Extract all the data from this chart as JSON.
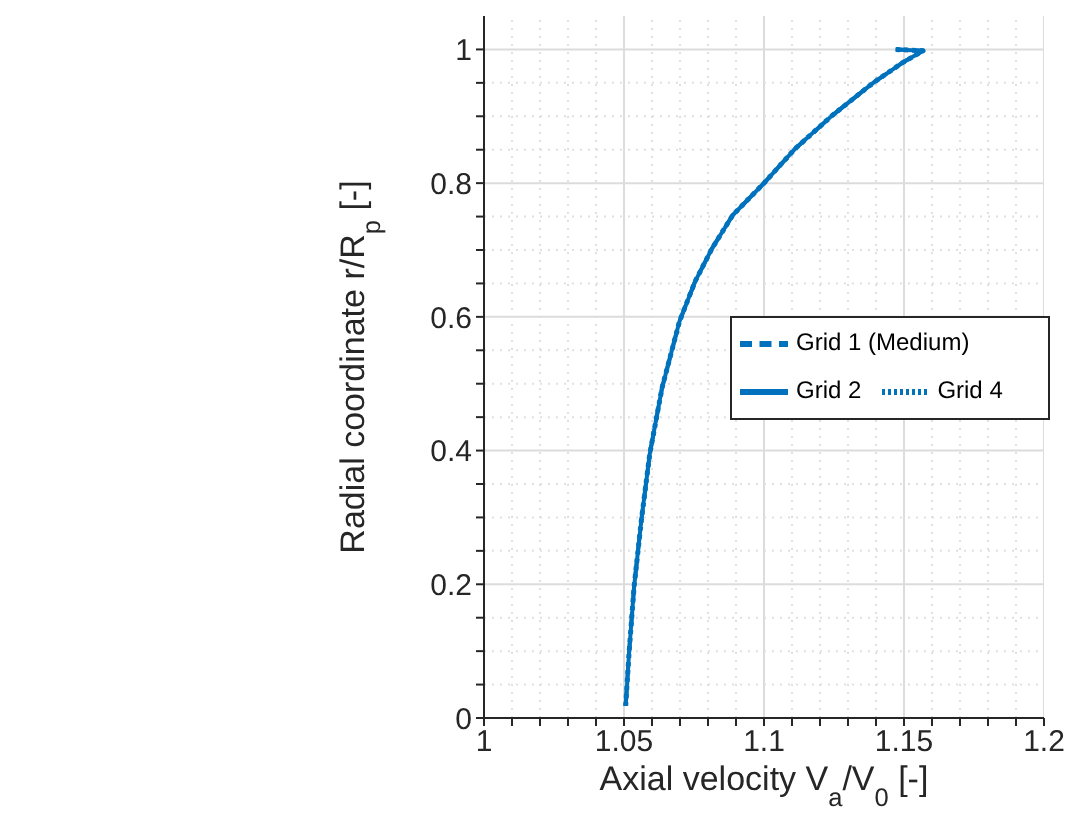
{
  "chart_data": {
    "type": "line",
    "xlabel": "Axial velocity V$_{a}$/V$_{0}$ [-]",
    "ylabel": "Radial coordinate r/R$_{p}$ [-]",
    "x": [
      1.0506,
      1.0518,
      1.0536,
      1.0562,
      1.0592,
      1.0636,
      1.0698,
      1.0754,
      1.0814,
      1.0888,
      1.1,
      1.111,
      1.1243,
      1.139,
      1.1494,
      1.1568,
      1.147
    ],
    "series": [
      {
        "name": "Grid 1 (Medium)",
        "color": "#0072bd",
        "line_style": "dashed",
        "values": [
          0.018,
          0.097,
          0.196,
          0.296,
          0.395,
          0.494,
          0.593,
          0.653,
          0.702,
          0.752,
          0.8,
          0.851,
          0.901,
          0.95,
          0.98,
          0.998,
          1.0
        ]
      },
      {
        "name": "Grid 2",
        "color": "#0072bd",
        "line_style": "solid",
        "values": [
          0.018,
          0.097,
          0.196,
          0.296,
          0.395,
          0.494,
          0.593,
          0.653,
          0.702,
          0.752,
          0.8,
          0.851,
          0.901,
          0.95,
          0.98,
          0.998,
          1.0
        ]
      },
      {
        "name": "Grid 4",
        "color": "#0072bd",
        "line_style": "dotted",
        "values": [
          0.018,
          0.097,
          0.196,
          0.296,
          0.395,
          0.494,
          0.593,
          0.653,
          0.702,
          0.752,
          0.8,
          0.851,
          0.901,
          0.95,
          0.98,
          0.998,
          1.0
        ]
      }
    ],
    "xlim": [
      1,
      1.2
    ],
    "xticks": [
      1,
      {
        "value": 1.01,
        "label": null
      },
      {
        "value": 1.02,
        "label": null
      },
      {
        "value": 1.03,
        "label": null
      },
      {
        "value": 1.04,
        "label": null
      },
      1.05,
      {
        "value": 1.06,
        "label": null
      },
      {
        "value": 1.07,
        "label": null
      },
      {
        "value": 1.08,
        "label": null
      },
      {
        "value": 1.09,
        "label": null
      },
      1.1,
      {
        "value": 1.11,
        "label": null
      },
      {
        "value": 1.12,
        "label": null
      },
      {
        "value": 1.13,
        "label": null
      },
      {
        "value": 1.14,
        "label": null
      },
      1.15,
      {
        "value": 1.16,
        "label": null
      },
      {
        "value": 1.17,
        "label": null
      },
      {
        "value": 1.18,
        "label": null
      },
      {
        "value": 1.19,
        "label": null
      },
      1.2
    ],
    "ylim": [
      0,
      1.05
    ],
    "yticks": [
      0,
      {
        "value": 0.05,
        "label": null
      },
      {
        "value": 0.1,
        "label": null
      },
      {
        "value": 0.15,
        "label": null
      },
      0.2,
      {
        "value": 0.25,
        "label": null
      },
      {
        "value": 0.3,
        "label": null
      },
      {
        "value": 0.35,
        "label": null
      },
      0.4,
      {
        "value": 0.45,
        "label": null
      },
      {
        "value": 0.5,
        "label": null
      },
      {
        "value": 0.55,
        "label": null
      },
      0.6,
      {
        "value": 0.65,
        "label": null
      },
      {
        "value": 0.7,
        "label": null
      },
      {
        "value": 0.75,
        "label": null
      },
      0.8,
      {
        "value": 0.85,
        "label": null
      },
      {
        "value": 0.9,
        "label": null
      },
      {
        "value": 0.95,
        "label": null
      },
      1
    ],
    "grid": true,
    "legend": "right",
    "marker": "none"
  }
}
